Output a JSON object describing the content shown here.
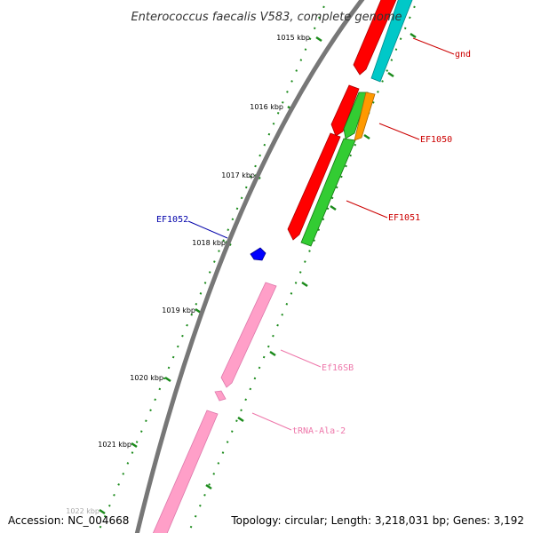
{
  "title": "Enterococcus faecalis V583, complete genome",
  "kbp_labels": [
    "1015 kbp",
    "1016 kbp",
    "1017 kbp",
    "1018 kbp",
    "1019 kbp",
    "1020 kbp",
    "1021 kbp",
    "1022 kbp"
  ],
  "gene_labels": {
    "gnd": "gnd",
    "ef1050": "EF1050",
    "ef1051": "EF1051",
    "ef1052": "EF1052",
    "ef16sb": "Ef16SB",
    "trna": "tRNA-Ala-2"
  },
  "footer": {
    "accession": "Accession: NC_004668",
    "topology": "Topology: circular; Length: 3,218,031 bp; Genes: 3,192"
  },
  "colors": {
    "backbone": "#777777",
    "forward_cds": "#ff0000",
    "reverse_cds": "#00c8c8",
    "green_cds": "#33cc33",
    "orange_cds": "#ff9900",
    "rrna": "#ff9fc8",
    "trna": "#ff9fc8",
    "negative_cds": "#0000ff",
    "tick": "#1a8a1a",
    "label_red": "#cc0000",
    "label_blue": "#0000aa",
    "label_pink": "#ee77aa"
  }
}
